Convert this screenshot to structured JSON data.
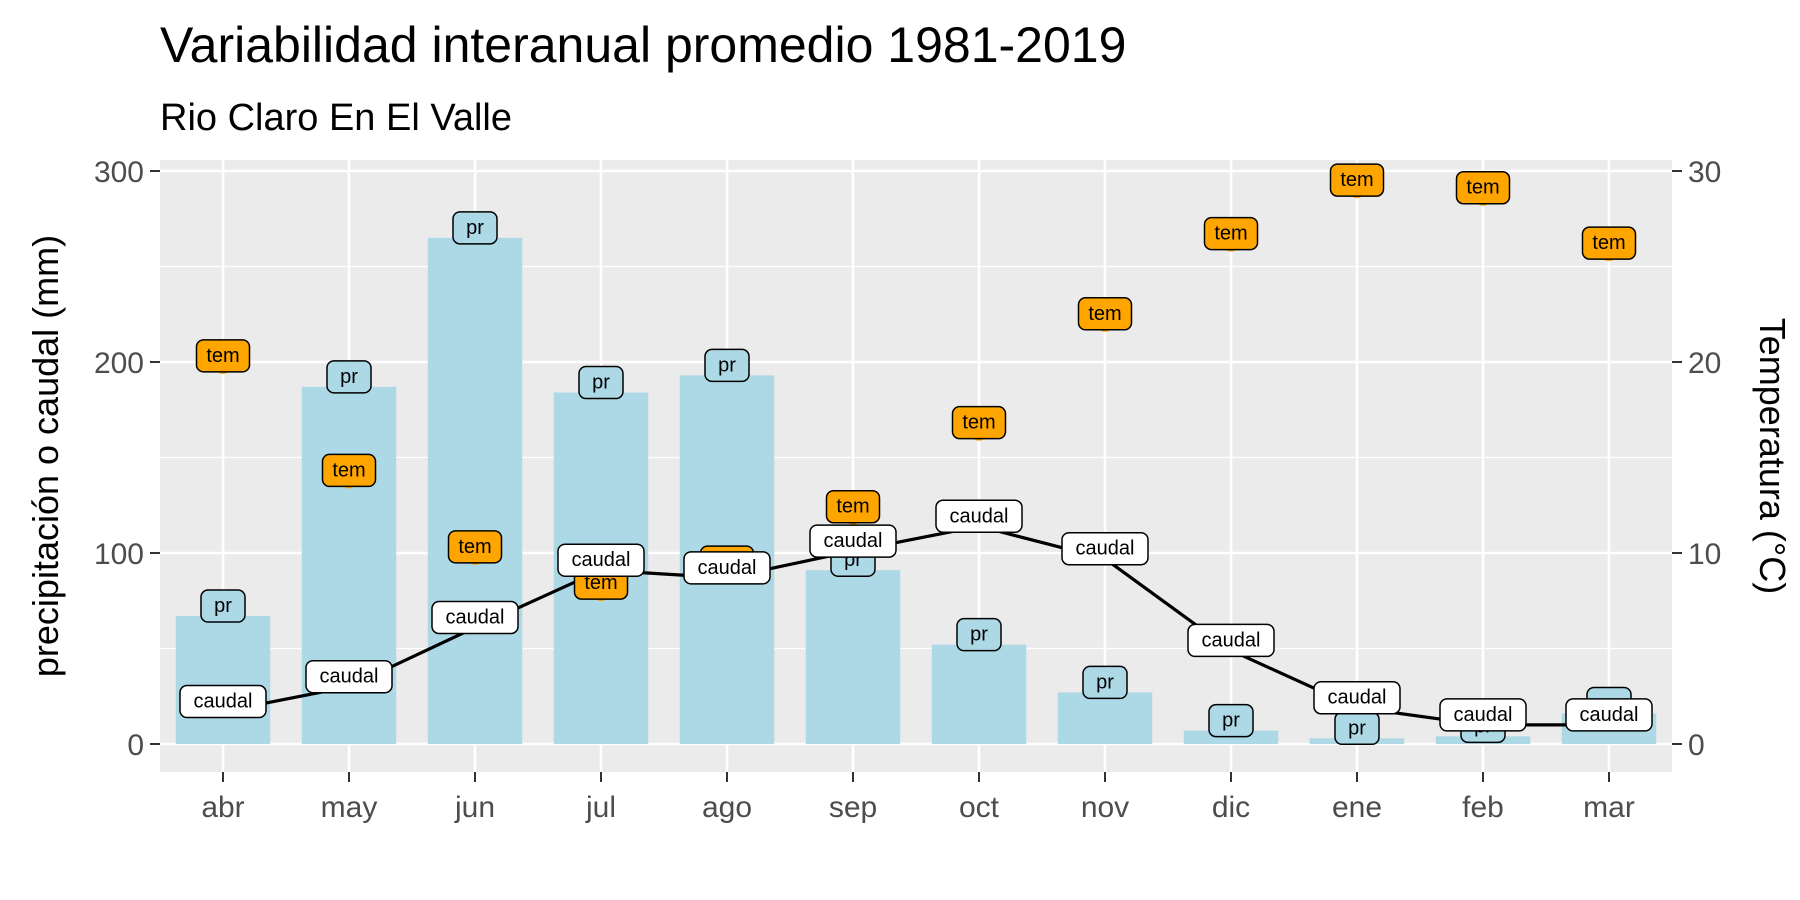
{
  "chart_data": {
    "type": "bar",
    "title": "Variabilidad interanual promedio 1981-2019",
    "subtitle": "Rio Claro En El Valle",
    "ylabel": "precipitación o caudal (mm)",
    "y2label": "Temperatura (°C)",
    "ylim": [
      0,
      300
    ],
    "y2lim": [
      0,
      30
    ],
    "yticks": [
      "0",
      "100",
      "200",
      "300"
    ],
    "y2ticks": [
      "0",
      "10",
      "20",
      "30"
    ],
    "grid": true,
    "categories": [
      "abr",
      "may",
      "jun",
      "jul",
      "ago",
      "sep",
      "oct",
      "nov",
      "dic",
      "ene",
      "feb",
      "mar"
    ],
    "series": [
      {
        "kind": "bar",
        "label": "pr",
        "color": "#add8e6",
        "values": [
          67,
          187,
          265,
          184,
          193,
          91,
          52,
          27,
          7,
          3,
          4,
          16
        ]
      },
      {
        "kind": "line",
        "label": "caudal",
        "color": "#000000",
        "values": [
          17,
          30,
          61,
          91,
          87,
          101,
          114,
          97,
          49,
          19,
          10,
          10
        ]
      },
      {
        "kind": "point",
        "label": "tem",
        "axis": "right",
        "color": "#ffa500",
        "values": [
          19.8,
          13.8,
          9.8,
          7.9,
          9.0,
          11.9,
          16.3,
          22.0,
          26.2,
          29.0,
          28.6,
          25.7
        ]
      }
    ]
  }
}
